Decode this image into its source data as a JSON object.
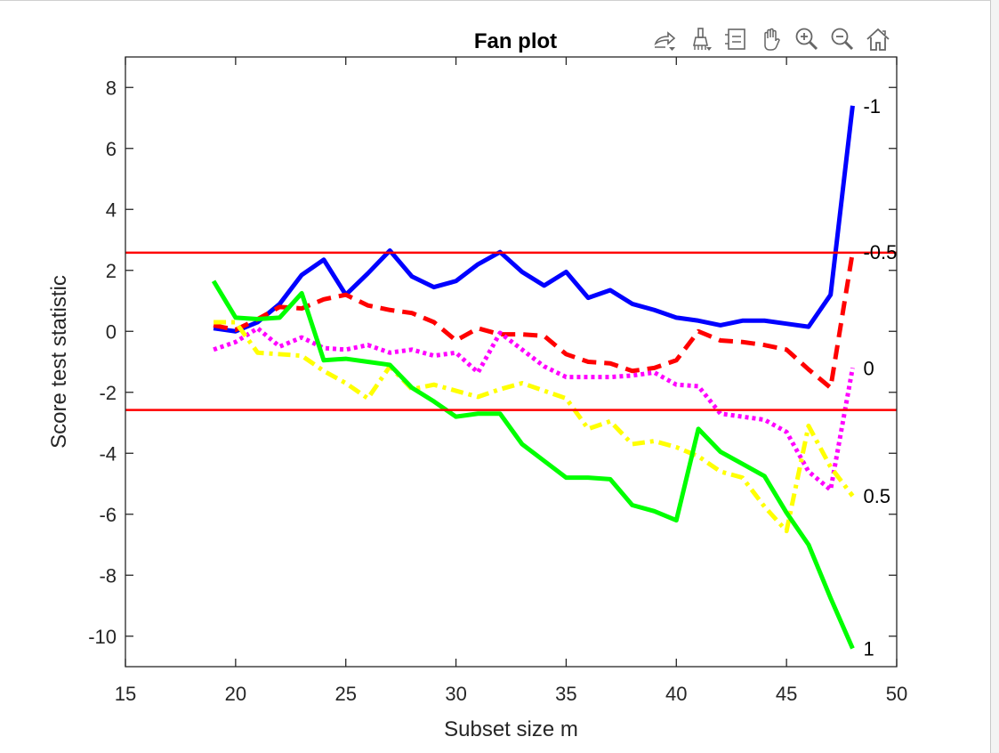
{
  "window": {
    "toolbar_icons": [
      "export-icon",
      "brush-icon",
      "legend-icon",
      "pan-icon",
      "zoom-in-icon",
      "zoom-out-icon",
      "home-icon"
    ]
  },
  "colors": {
    "threshold": "#ff0000",
    "axis": "#262626"
  },
  "chart_data": {
    "type": "line",
    "title": "Fan plot",
    "xlabel": "Subset size m",
    "ylabel": "Score test statistic",
    "xlim": [
      15,
      50
    ],
    "ylim": [
      -11,
      9
    ],
    "xticks": [
      15,
      20,
      25,
      30,
      35,
      40,
      45,
      50
    ],
    "yticks": [
      -10,
      -8,
      -6,
      -4,
      -2,
      0,
      2,
      4,
      6,
      8
    ],
    "grid": false,
    "legend": "none",
    "threshold_lines": [
      2.58,
      -2.58
    ],
    "x": [
      19,
      20,
      21,
      22,
      23,
      24,
      25,
      26,
      27,
      28,
      29,
      30,
      31,
      32,
      33,
      34,
      35,
      36,
      37,
      38,
      39,
      40,
      41,
      42,
      43,
      44,
      45,
      46,
      47,
      48
    ],
    "series": [
      {
        "name": "-1",
        "color": "#0000ff",
        "style": "solid",
        "values": [
          0.1,
          0.0,
          0.3,
          0.9,
          1.85,
          2.35,
          1.2,
          1.9,
          2.65,
          1.8,
          1.45,
          1.65,
          2.2,
          2.6,
          1.95,
          1.5,
          1.95,
          1.1,
          1.35,
          0.9,
          0.7,
          0.45,
          0.35,
          0.2,
          0.35,
          0.35,
          0.25,
          0.15,
          1.2,
          7.4
        ]
      },
      {
        "name": "-0.5",
        "color": "#ff0000",
        "style": "dashed",
        "values": [
          0.2,
          0.05,
          0.4,
          0.8,
          0.75,
          1.05,
          1.2,
          0.85,
          0.7,
          0.6,
          0.3,
          -0.3,
          0.1,
          -0.1,
          -0.1,
          -0.15,
          -0.75,
          -1.0,
          -1.05,
          -1.3,
          -1.2,
          -0.95,
          0.0,
          -0.3,
          -0.35,
          -0.45,
          -0.6,
          -1.25,
          -1.85,
          2.6
        ]
      },
      {
        "name": "0",
        "color": "#ff00ff",
        "style": "dotted",
        "values": [
          -0.6,
          -0.35,
          0.1,
          -0.5,
          -0.2,
          -0.55,
          -0.6,
          -0.45,
          -0.7,
          -0.6,
          -0.8,
          -0.7,
          -1.35,
          -0.05,
          -0.6,
          -1.15,
          -1.5,
          -1.5,
          -1.5,
          -1.45,
          -1.35,
          -1.75,
          -1.8,
          -2.7,
          -2.8,
          -2.9,
          -3.3,
          -4.6,
          -5.2,
          -1.2
        ]
      },
      {
        "name": "0.5",
        "color": "#ffff00",
        "style": "dashdot",
        "values": [
          0.3,
          0.3,
          -0.7,
          -0.75,
          -0.8,
          -1.3,
          -1.7,
          -2.2,
          -1.15,
          -1.9,
          -1.75,
          -1.95,
          -2.15,
          -1.9,
          -1.7,
          -1.95,
          -2.2,
          -3.2,
          -2.95,
          -3.7,
          -3.6,
          -3.8,
          -4.1,
          -4.6,
          -4.8,
          -5.75,
          -6.55,
          -3.1,
          -4.45,
          -5.4
        ]
      },
      {
        "name": "1",
        "color": "#00ff00",
        "style": "solid",
        "values": [
          1.65,
          0.45,
          0.4,
          0.45,
          1.25,
          -0.95,
          -0.9,
          -1.0,
          -1.1,
          -1.85,
          -2.3,
          -2.8,
          -2.7,
          -2.7,
          -3.7,
          -4.25,
          -4.8,
          -4.8,
          -4.85,
          -5.7,
          -5.9,
          -6.2,
          -3.2,
          -3.95,
          -4.35,
          -4.75,
          -5.95,
          -7.0,
          -8.75,
          -10.4
        ]
      }
    ]
  }
}
